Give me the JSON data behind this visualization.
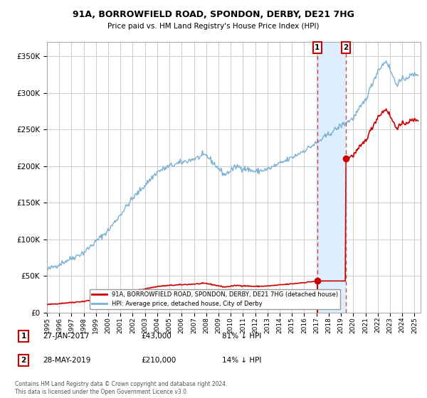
{
  "title": "91A, BORROWFIELD ROAD, SPONDON, DERBY, DE21 7HG",
  "subtitle": "Price paid vs. HM Land Registry's House Price Index (HPI)",
  "legend_label_red": "91A, BORROWFIELD ROAD, SPONDON, DERBY, DE21 7HG (detached house)",
  "legend_label_blue": "HPI: Average price, detached house, City of Derby",
  "footer": "Contains HM Land Registry data © Crown copyright and database right 2024.\nThis data is licensed under the Open Government Licence v3.0.",
  "transactions": [
    {
      "num": 1,
      "date": "27-JAN-2017",
      "price": 43000,
      "pct": "81% ↓ HPI",
      "year": 2017.07
    },
    {
      "num": 2,
      "date": "28-MAY-2019",
      "price": 210000,
      "pct": "14% ↓ HPI",
      "year": 2019.41
    }
  ],
  "ylim": [
    0,
    370000
  ],
  "xlim_start": 1995.0,
  "xlim_end": 2025.5,
  "background_color": "#ffffff",
  "grid_color": "#cccccc",
  "red_color": "#cc0000",
  "blue_color": "#7ab0d4",
  "shade_color": "#ddeeff",
  "dashed_color": "#dd4444",
  "marker_color": "#cc0000",
  "box_color": "#cc0000"
}
